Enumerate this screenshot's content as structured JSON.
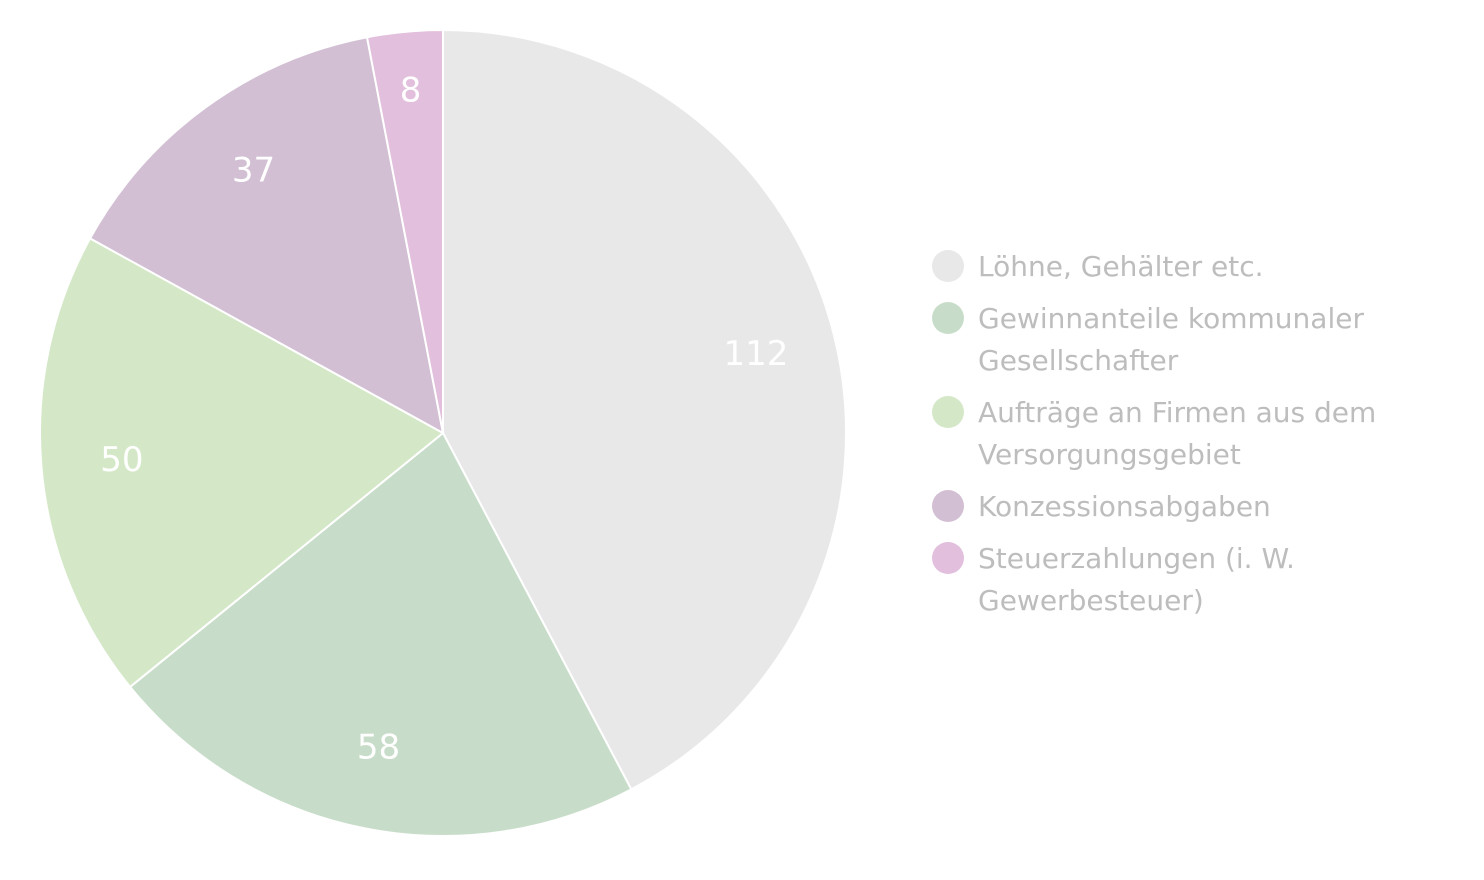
{
  "chart_data": {
    "type": "pie",
    "categories": [
      "Löhne, Gehälter etc.",
      "Gewinnanteile kommunaler Gesellschafter",
      "Aufträge an Firmen aus dem Versorgungsgebiet",
      "Konzessionsabgaben",
      "Steuerzahlungen (i. W. Gewerbesteuer)"
    ],
    "values": [
      112,
      58,
      50,
      37,
      8
    ],
    "colors": [
      "#e8e8e8",
      "#c8ddc9",
      "#d4e8c8",
      "#d2bfd3",
      "#e2bfdc"
    ]
  }
}
